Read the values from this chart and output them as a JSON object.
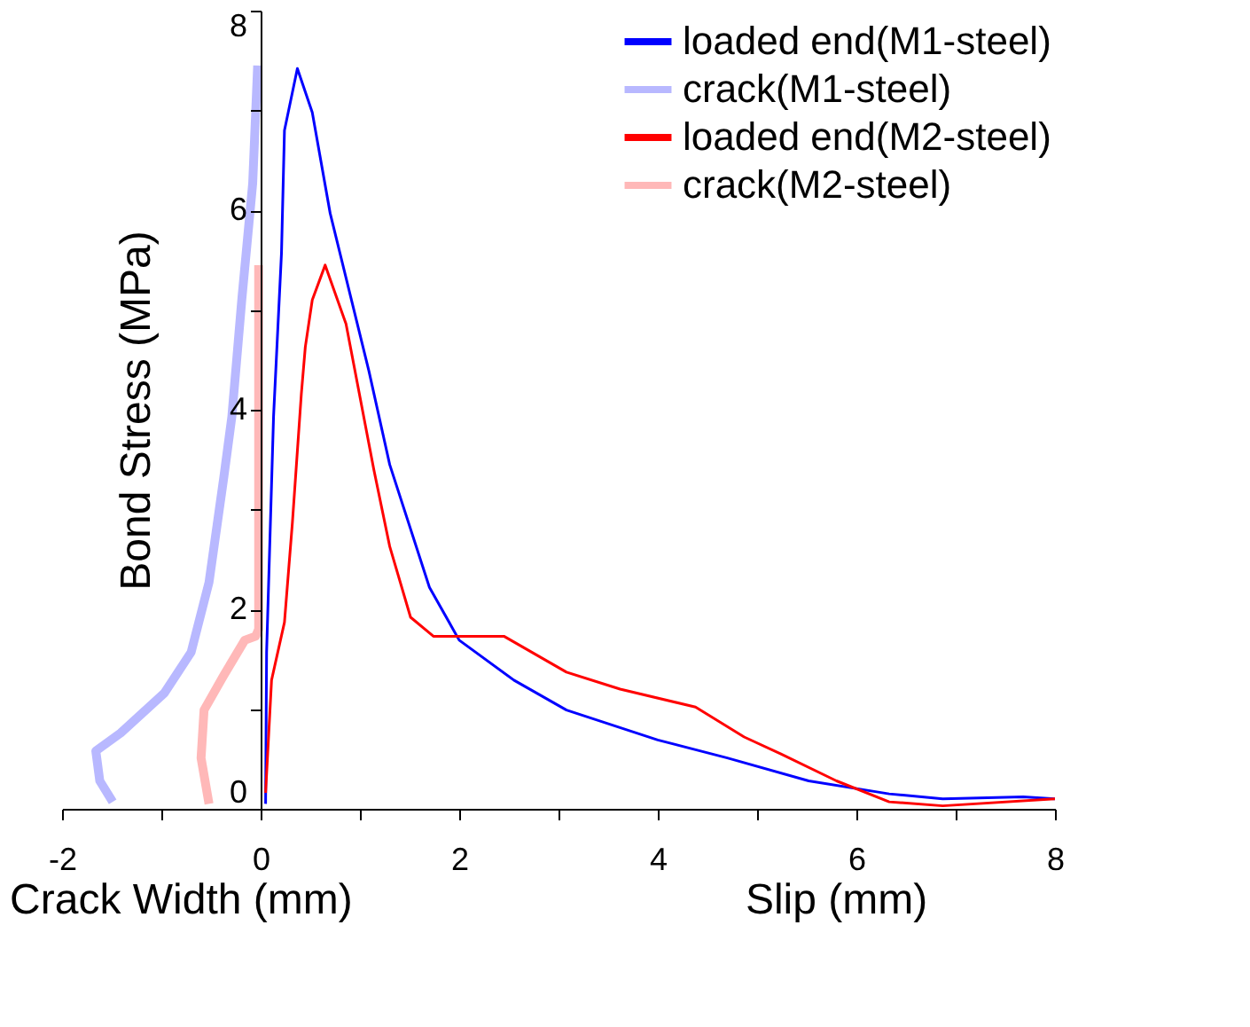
{
  "chart_data": {
    "type": "line",
    "ylabel": "Bond Stress (MPa)",
    "annotations": [
      "Crack Width (mm)",
      "Slip (mm)"
    ],
    "xlim": [
      -2,
      8
    ],
    "xticks": [
      -2,
      {
        "value": -1,
        "label": null
      },
      0,
      {
        "value": 1,
        "label": null
      },
      2,
      {
        "value": 3,
        "label": null
      },
      4,
      {
        "value": 5,
        "label": null
      },
      6,
      {
        "value": 7,
        "label": null
      },
      8
    ],
    "ylim": [
      0,
      8
    ],
    "yticks": [
      0,
      {
        "value": 1,
        "label": null
      },
      2,
      {
        "value": 3,
        "label": null
      },
      4,
      {
        "value": 5,
        "label": null
      },
      6,
      {
        "value": 7,
        "label": null
      },
      8
    ],
    "grid": false,
    "legend": "top right",
    "marker": "none",
    "line_style": "solid",
    "series": [
      {
        "name": "loaded end(M1-steel)",
        "color": "#0000ff",
        "x": [
          0.05,
          0.06,
          0.13,
          0.21,
          0.24,
          0.37,
          0.52,
          0.7,
          1.09,
          1.3,
          1.7,
          2.0,
          2.55,
          3.08,
          4.0,
          4.7,
          5.52,
          6.33,
          6.87,
          7.68,
          8.0
        ],
        "values": [
          0.05,
          1.57,
          3.93,
          5.57,
          6.8,
          7.42,
          6.98,
          5.97,
          4.39,
          3.45,
          2.22,
          1.69,
          1.29,
          0.99,
          0.69,
          0.51,
          0.28,
          0.15,
          0.1,
          0.12,
          0.1
        ]
      },
      {
        "name": "crack(M1-steel)",
        "color": "#b8b8ff",
        "x": [
          -1.49,
          -1.62,
          -1.66,
          -1.41,
          -0.97,
          -0.7,
          -0.52,
          -0.37,
          -0.29,
          -0.19,
          -0.08,
          -0.03
        ],
        "values": [
          0.07,
          0.28,
          0.58,
          0.76,
          1.16,
          1.57,
          2.27,
          3.33,
          3.93,
          5.1,
          6.27,
          7.45
        ]
      },
      {
        "name": "loaded end(M2-steel)",
        "color": "#ff0000",
        "x": [
          0.05,
          0.11,
          0.24,
          0.32,
          0.41,
          0.45,
          0.52,
          0.65,
          0.86,
          1.14,
          1.3,
          1.51,
          1.74,
          2.45,
          3.08,
          3.62,
          4.38,
          4.87,
          5.24,
          5.8,
          6.33,
          6.87,
          8.0
        ],
        "values": [
          0.16,
          1.29,
          1.87,
          2.87,
          4.16,
          4.63,
          5.1,
          5.45,
          4.86,
          3.4,
          2.63,
          1.92,
          1.73,
          1.73,
          1.37,
          1.2,
          1.02,
          0.72,
          0.55,
          0.28,
          0.07,
          0.03,
          0.1
        ]
      },
      {
        "name": "crack(M2-steel)",
        "color": "#ffb8b8",
        "x": [
          -0.52,
          -0.6,
          -0.57,
          -0.37,
          -0.16,
          -0.05,
          -0.02,
          -0.02
        ],
        "values": [
          0.05,
          0.51,
          0.99,
          1.34,
          1.69,
          1.73,
          1.8,
          5.45
        ]
      }
    ]
  }
}
